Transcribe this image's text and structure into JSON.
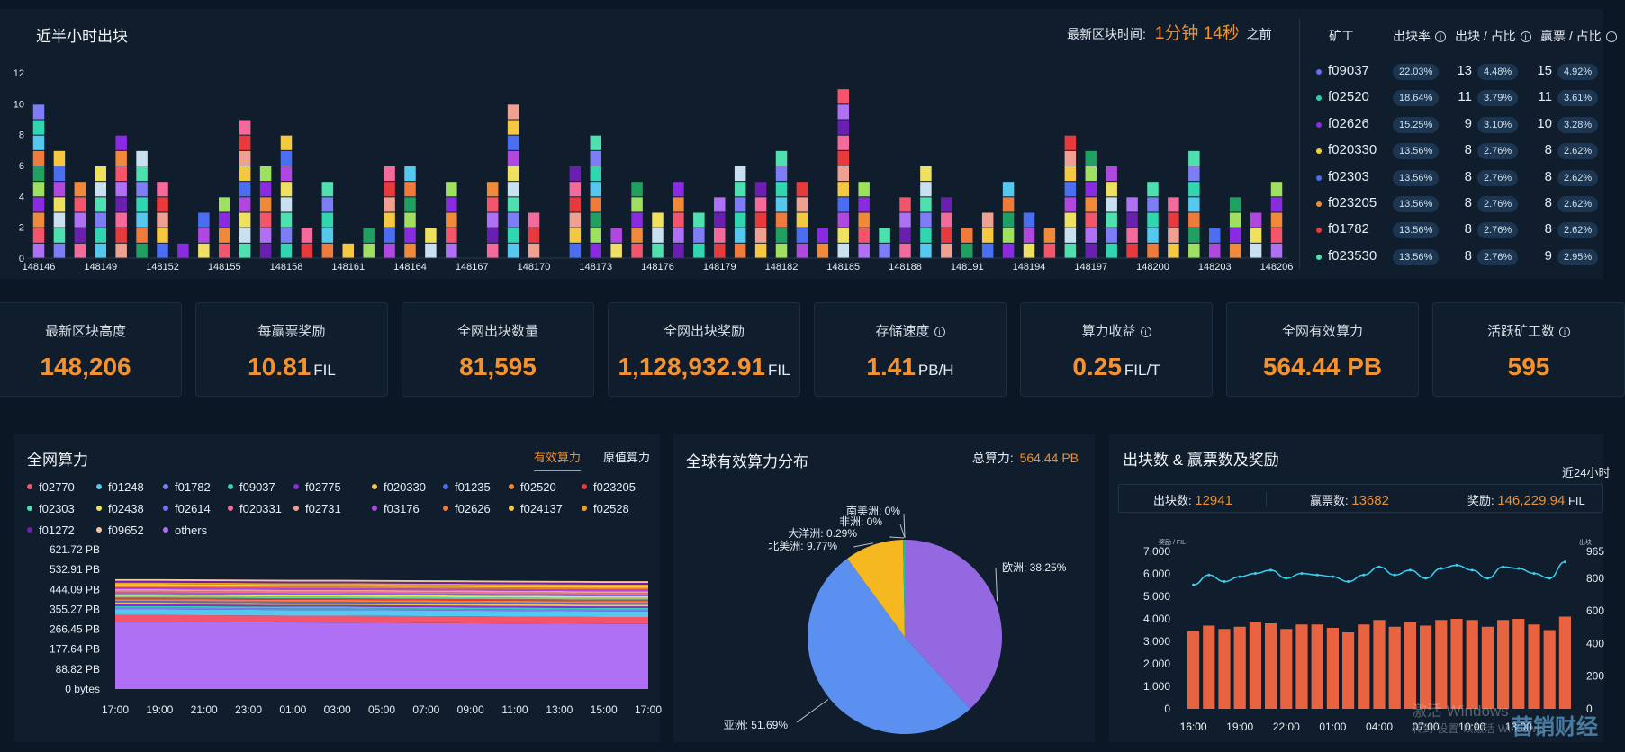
{
  "blocks_panel": {
    "title": "近半小时出块",
    "latest_label": "最新区块时间:",
    "latest_value": "1分钟 14秒",
    "latest_suffix": "之前"
  },
  "miners_table": {
    "headers": [
      "矿工",
      "出块率",
      "出块 / 占比",
      "赢票 / 占比"
    ],
    "rows": [
      {
        "miner": "f09037",
        "rate": "22.03%",
        "blocks": "13",
        "blocks_pct": "4.48%",
        "wins": "15",
        "wins_pct": "4.92%",
        "dot": "#6b6cf5"
      },
      {
        "miner": "f02520",
        "rate": "18.64%",
        "blocks": "11",
        "blocks_pct": "3.79%",
        "wins": "11",
        "wins_pct": "3.61%",
        "dot": "#20d6b0"
      },
      {
        "miner": "f02626",
        "rate": "15.25%",
        "blocks": "9",
        "blocks_pct": "3.10%",
        "wins": "10",
        "wins_pct": "3.28%",
        "dot": "#8f2bd9"
      },
      {
        "miner": "f020330",
        "rate": "13.56%",
        "blocks": "8",
        "blocks_pct": "2.76%",
        "wins": "8",
        "wins_pct": "2.62%",
        "dot": "#f5d030"
      },
      {
        "miner": "f02303",
        "rate": "13.56%",
        "blocks": "8",
        "blocks_pct": "2.76%",
        "wins": "8",
        "wins_pct": "2.62%",
        "dot": "#4a6df2"
      },
      {
        "miner": "f023205",
        "rate": "13.56%",
        "blocks": "8",
        "blocks_pct": "2.76%",
        "wins": "8",
        "wins_pct": "2.62%",
        "dot": "#f08a3a"
      },
      {
        "miner": "f01782",
        "rate": "13.56%",
        "blocks": "8",
        "blocks_pct": "2.76%",
        "wins": "8",
        "wins_pct": "2.62%",
        "dot": "#e8393d"
      },
      {
        "miner": "f023530",
        "rate": "13.56%",
        "blocks": "8",
        "blocks_pct": "2.76%",
        "wins": "9",
        "wins_pct": "2.95%",
        "dot": "#4fe0b0"
      }
    ]
  },
  "stats": [
    {
      "label": "最新区块高度",
      "value": "148,206",
      "unit": "",
      "info": false
    },
    {
      "label": "每赢票奖励",
      "value": "10.81",
      "unit": "FIL",
      "info": false
    },
    {
      "label": "全网出块数量",
      "value": "81,595",
      "unit": "",
      "info": false
    },
    {
      "label": "全网出块奖励",
      "value": "1,128,932.91",
      "unit": "FIL",
      "info": false
    },
    {
      "label": "存储速度",
      "value": "1.41",
      "unit": "PB/H",
      "info": true
    },
    {
      "label": "算力收益",
      "value": "0.25",
      "unit": "FIL/T",
      "info": true
    },
    {
      "label": "全网有效算力",
      "value": "564.44 PB",
      "unit": "",
      "info": false
    },
    {
      "label": "活跃矿工数",
      "value": "595",
      "unit": "",
      "info": true
    }
  ],
  "power_panel": {
    "title": "全网算力",
    "tab_active": "有效算力",
    "tab_other": "原值算力",
    "legend": [
      {
        "name": "f02770",
        "color": "#f4556b"
      },
      {
        "name": "f01248",
        "color": "#55c8f0"
      },
      {
        "name": "f01782",
        "color": "#7d7df5"
      },
      {
        "name": "f09037",
        "color": "#2fd6b0"
      },
      {
        "name": "f02775",
        "color": "#8a2be2"
      },
      {
        "name": "f020330",
        "color": "#f5c842"
      },
      {
        "name": "f01235",
        "color": "#4a6df2"
      },
      {
        "name": "f02520",
        "color": "#f08a3a"
      },
      {
        "name": "f023205",
        "color": "#e8393d"
      },
      {
        "name": "f02303",
        "color": "#4fe0b0"
      },
      {
        "name": "f02438",
        "color": "#f0e060"
      },
      {
        "name": "f02614",
        "color": "#7b6cf5"
      },
      {
        "name": "f020331",
        "color": "#f46b9b"
      },
      {
        "name": "f02731",
        "color": "#f0a090"
      },
      {
        "name": "f03176",
        "color": "#b048e0"
      },
      {
        "name": "f02626",
        "color": "#f07a3a"
      },
      {
        "name": "f024137",
        "color": "#f5c842"
      },
      {
        "name": "f02528",
        "color": "#f0a020"
      },
      {
        "name": "f01272",
        "color": "#6a1fb0"
      },
      {
        "name": "f09652",
        "color": "#f0c8a0"
      },
      {
        "name": "others",
        "color": "#b070f5"
      }
    ]
  },
  "pie_panel": {
    "title": "全球有效算力分布",
    "total_label": "总算力:",
    "total_value": "564.44 PB"
  },
  "reward_panel": {
    "title": "出块数 & 赢票数及奖励",
    "range": "近24小时",
    "blocks_label": "出块数:",
    "blocks_value": "12941",
    "wins_label": "赢票数:",
    "wins_value": "13682",
    "reward_label": "奖励:",
    "reward_value": "146,229.94",
    "reward_unit": "FIL",
    "left_axis_label": "奖励 / FIL",
    "right_axis_label": "出块"
  },
  "watermark": {
    "line1": "激活 Windows",
    "line2": "转到\"设置\"以激活 Windows。",
    "brand": "营销财经"
  },
  "chart_data": [
    {
      "type": "bar",
      "title": "近半小时出块",
      "categories": [
        "148146",
        "148147",
        "148148",
        "148149",
        "148150",
        "148151",
        "148152",
        "148153",
        "148154",
        "148155",
        "148156",
        "148157",
        "148158",
        "148159",
        "148160",
        "148161",
        "148162",
        "148163",
        "148164",
        "148165",
        "148166",
        "148167",
        "148168",
        "148169",
        "148170",
        "148171",
        "148172",
        "148173",
        "148174",
        "148175",
        "148176",
        "148177",
        "148178",
        "148179",
        "148180",
        "148181",
        "148182",
        "148183",
        "148184",
        "148185",
        "148186",
        "148187",
        "148188",
        "148189",
        "148190",
        "148191",
        "148192",
        "148193",
        "148194",
        "148195",
        "148196",
        "148197",
        "148198",
        "148199",
        "148200",
        "148201",
        "148202",
        "148203",
        "148204",
        "148205",
        "148206"
      ],
      "x_tick_labels": [
        "148146",
        "148149",
        "148152",
        "148155",
        "148158",
        "148161",
        "148164",
        "148167",
        "148170",
        "148173",
        "148176",
        "148179",
        "148182",
        "148185",
        "148188",
        "148191",
        "148194",
        "148197",
        "148200",
        "148203",
        "148206"
      ],
      "values": [
        10,
        7,
        5,
        6,
        8,
        7,
        5,
        1,
        3,
        4,
        9,
        6,
        8,
        2,
        5,
        1,
        2,
        6,
        6,
        2,
        5,
        0,
        5,
        10,
        3,
        0,
        6,
        8,
        2,
        5,
        3,
        5,
        3,
        4,
        6,
        5,
        7,
        5,
        2,
        11,
        5,
        2,
        4,
        6,
        4,
        2,
        3,
        5,
        3,
        2,
        8,
        7,
        6,
        4,
        5,
        4,
        7,
        2,
        4,
        3,
        5
      ],
      "ylim": [
        0,
        12
      ],
      "yticks": [
        0,
        2,
        4,
        6,
        8,
        10,
        12
      ]
    },
    {
      "type": "area",
      "title": "全网算力",
      "x": [
        "17:00",
        "19:00",
        "21:00",
        "23:00",
        "01:00",
        "03:00",
        "05:00",
        "07:00",
        "09:00",
        "11:00",
        "13:00",
        "15:00",
        "17:00"
      ],
      "y_tick_labels": [
        "0 bytes",
        "88.82 PB",
        "177.64 PB",
        "266.45 PB",
        "355.27 PB",
        "444.09 PB",
        "532.91 PB",
        "621.72 PB"
      ],
      "series": [
        {
          "name": "others",
          "values": [
            300,
            300,
            299,
            298,
            297,
            296,
            295,
            294,
            293,
            292,
            291,
            290,
            290
          ]
        },
        {
          "name": "f02770",
          "values": [
            30,
            30,
            30,
            30,
            30,
            31,
            31,
            31,
            31,
            31,
            31,
            31,
            31
          ]
        },
        {
          "name": "f01248",
          "values": [
            25,
            25,
            25,
            25,
            25,
            25,
            25,
            25,
            25,
            25,
            25,
            25,
            25
          ]
        }
      ],
      "ylim": [
        0,
        621.72
      ]
    },
    {
      "type": "pie",
      "title": "全球有效算力分布",
      "labels": [
        "欧洲",
        "亚洲",
        "北美洲",
        "大洋洲",
        "非洲",
        "南美洲"
      ],
      "values": [
        38.25,
        51.69,
        9.77,
        0.29,
        0.0,
        0.0
      ],
      "colors": [
        "#9468e0",
        "#5b8ff0",
        "#f5b820",
        "#1cc0a0",
        "#7ad0e0",
        "#3d8dd8"
      ]
    },
    {
      "type": "bar",
      "title": "出块数 & 赢票数及奖励",
      "x": [
        "16:00",
        "17:00",
        "18:00",
        "19:00",
        "20:00",
        "21:00",
        "22:00",
        "23:00",
        "00:00",
        "01:00",
        "02:00",
        "03:00",
        "04:00",
        "05:00",
        "06:00",
        "07:00",
        "08:00",
        "09:00",
        "10:00",
        "11:00",
        "12:00",
        "13:00",
        "14:00",
        "15:00",
        "16:00"
      ],
      "x_tick_labels": [
        "16:00",
        "19:00",
        "22:00",
        "01:00",
        "04:00",
        "07:00",
        "10:00",
        "13:00",
        "16:00"
      ],
      "series": [
        {
          "name": "奖励 / FIL",
          "type": "bar",
          "values": [
            3450,
            3700,
            3550,
            3650,
            3850,
            3800,
            3550,
            3750,
            3750,
            3600,
            3400,
            3750,
            3950,
            3650,
            3850,
            3700,
            3950,
            4000,
            3950,
            3650,
            3950,
            4000,
            3750,
            3500,
            4100
          ]
        },
        {
          "name": "出块",
          "type": "line",
          "values": [
            760,
            820,
            780,
            810,
            830,
            850,
            800,
            830,
            820,
            810,
            780,
            820,
            870,
            820,
            850,
            800,
            860,
            880,
            850,
            800,
            870,
            860,
            830,
            800,
            900
          ]
        }
      ],
      "y_left_ticks": [
        "0",
        "1,000",
        "2,000",
        "3,000",
        "4,000",
        "5,000",
        "6,000",
        "7,000"
      ],
      "y_right_ticks": [
        "0",
        "200",
        "400",
        "600",
        "800",
        "965"
      ],
      "ylim_left": [
        0,
        7000
      ],
      "ylim_right": [
        0,
        965
      ]
    }
  ]
}
